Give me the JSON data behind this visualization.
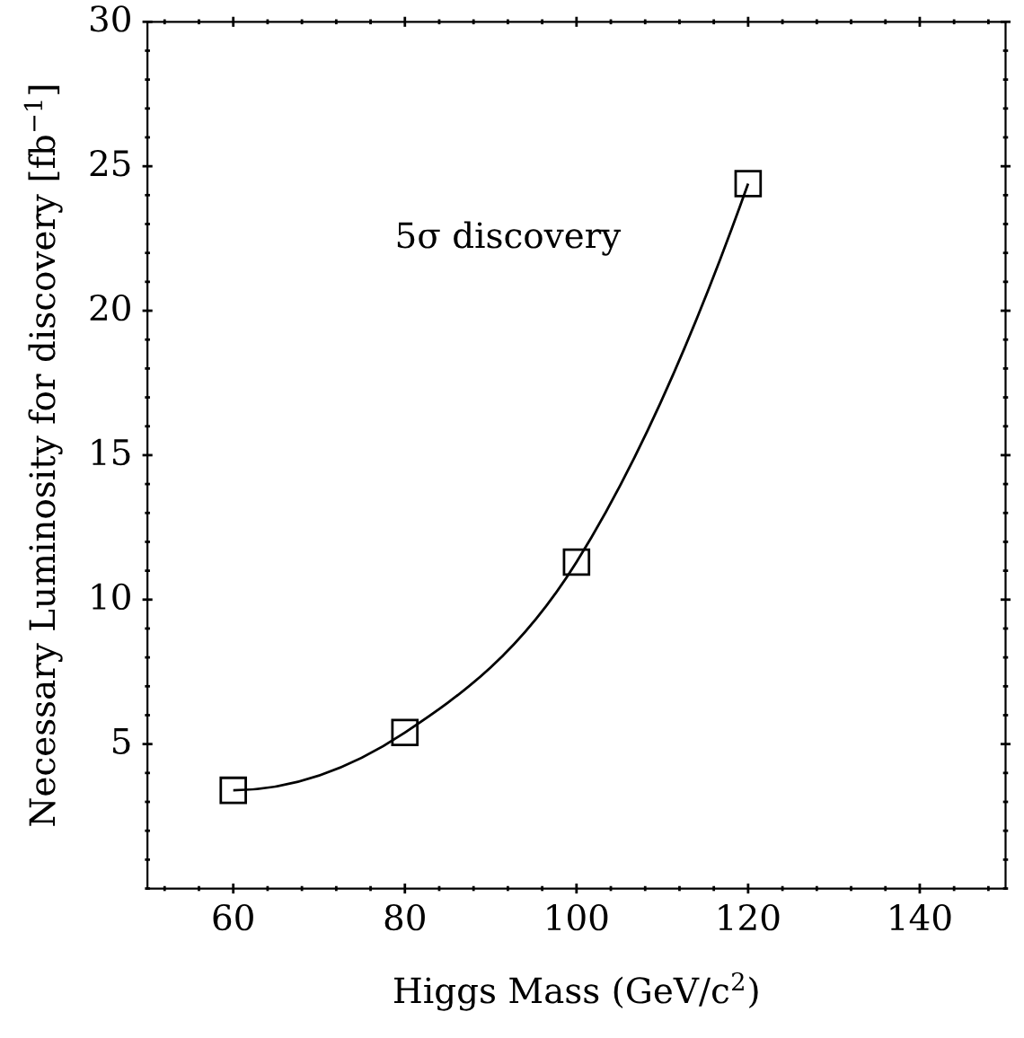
{
  "chart_data": {
    "type": "line",
    "xlabel": "Higgs Mass (GeV/c$^{2}$)",
    "ylabel": "Necessary Luminosity for discovery [fb$^{−1}$]",
    "x": [
      60,
      80,
      100,
      120
    ],
    "series": [
      {
        "color": "#000000",
        "values": [
          3.4,
          5.4,
          11.3,
          24.4
        ]
      }
    ],
    "marker": "square",
    "line_style": "solid",
    "xlim": [
      50,
      150
    ],
    "xticks": [
      60,
      80,
      100,
      120,
      140
    ],
    "ylim": [
      0,
      30
    ],
    "yticks": [
      5,
      10,
      15,
      20,
      25,
      30
    ],
    "annotations": [
      "5σ discovery"
    ],
    "grid": false,
    "legend": false
  }
}
